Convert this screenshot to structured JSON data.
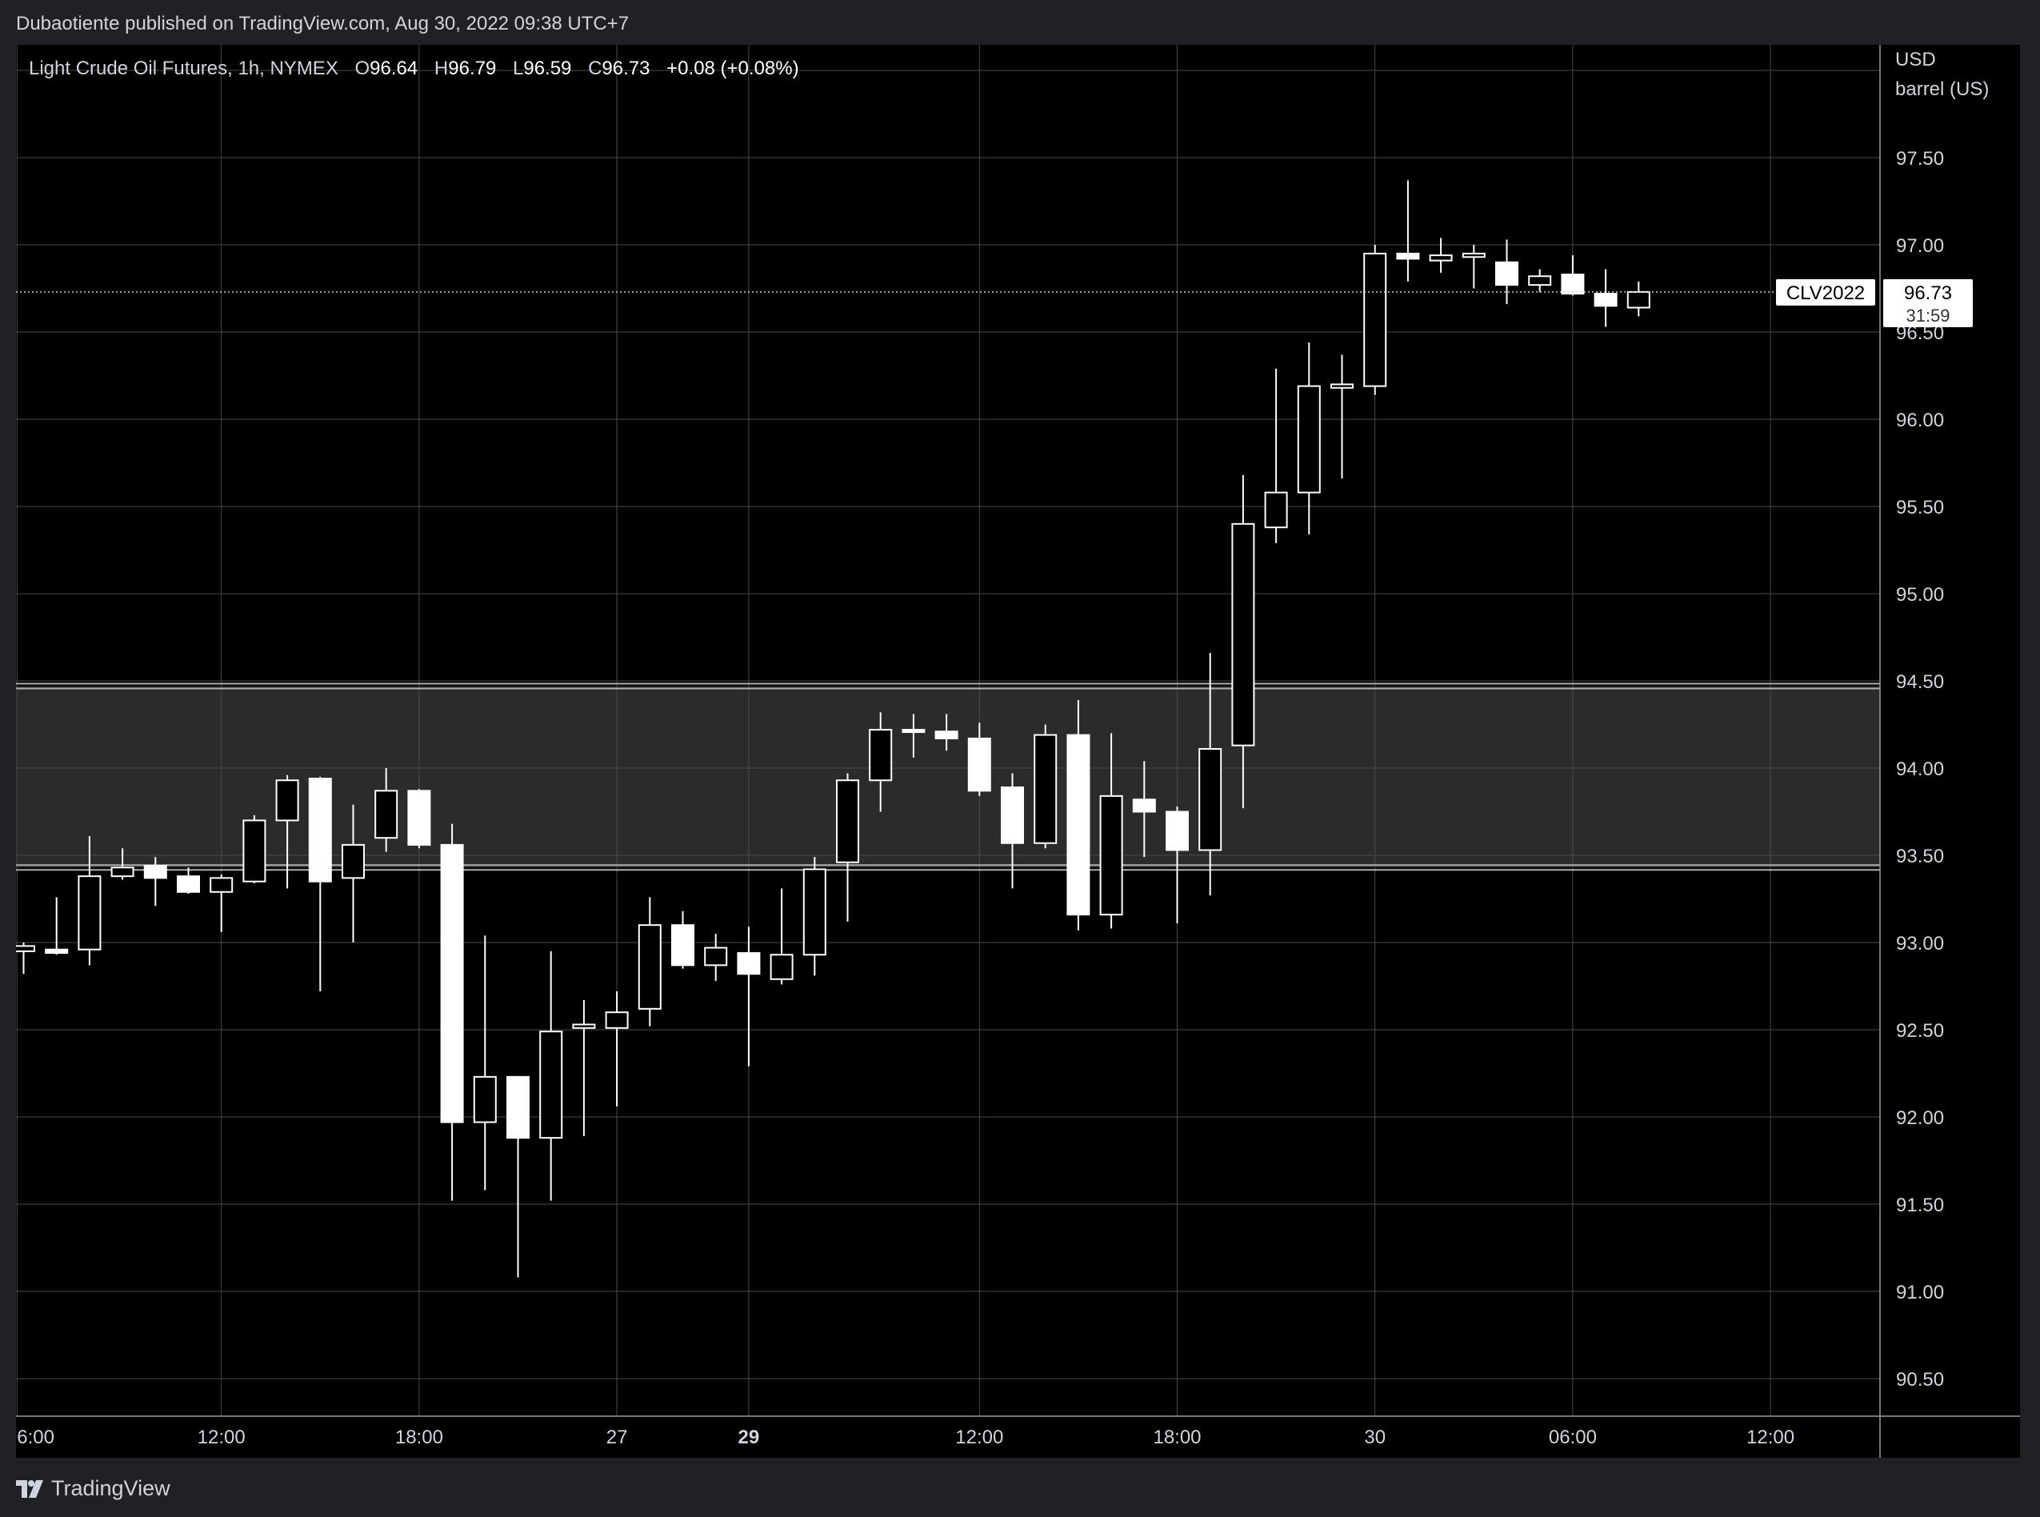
{
  "header": {
    "published": "Dubaotiente published on TradingView.com, Aug 30, 2022 09:38 UTC+7"
  },
  "legend": {
    "symbol": "Light Crude Oil Futures, 1h, NYMEX",
    "o_label": "O",
    "o": "96.64",
    "h_label": "H",
    "h": "96.79",
    "l_label": "L",
    "l": "96.59",
    "c_label": "C",
    "c": "96.73",
    "change": "+0.08 (+0.08%)"
  },
  "price_scale": {
    "currency": "USD",
    "unit": "barrel (US)",
    "ticks": [
      "97.50",
      "97.00",
      "96.50",
      "96.00",
      "95.50",
      "95.00",
      "94.50",
      "94.00",
      "93.50",
      "93.00",
      "92.50",
      "92.00",
      "91.50",
      "91.00",
      "90.50"
    ],
    "last_price": "96.73",
    "countdown": "31:59",
    "ticker_tag": "CLV2022"
  },
  "time_axis": {
    "labels": [
      {
        "text": "6:00",
        "idx": -0.2,
        "bold": false
      },
      {
        "text": "12:00",
        "idx": 6,
        "bold": false
      },
      {
        "text": "18:00",
        "idx": 12,
        "bold": false
      },
      {
        "text": "27",
        "idx": 18,
        "bold": false
      },
      {
        "text": "29",
        "idx": 22,
        "bold": true
      },
      {
        "text": "12:00",
        "idx": 29,
        "bold": false
      },
      {
        "text": "18:00",
        "idx": 35,
        "bold": false
      },
      {
        "text": "30",
        "idx": 41,
        "bold": false
      },
      {
        "text": "06:00",
        "idx": 47,
        "bold": false
      },
      {
        "text": "12:00",
        "idx": 53,
        "bold": false
      }
    ]
  },
  "chart_data": {
    "type": "candlestick",
    "title": "Light Crude Oil Futures, 1h, NYMEX",
    "ylim": [
      90.3,
      98.0
    ],
    "y_unit": "USD / barrel (US)",
    "grid": true,
    "zone": {
      "from": 93.43,
      "to": 94.47
    },
    "last_price": 96.73,
    "candles": [
      {
        "o": 92.95,
        "h": 93.0,
        "l": 92.82,
        "c": 92.98
      },
      {
        "o": 92.96,
        "h": 93.26,
        "l": 92.93,
        "c": 92.94
      },
      {
        "o": 92.96,
        "h": 93.61,
        "l": 92.87,
        "c": 93.38
      },
      {
        "o": 93.38,
        "h": 93.54,
        "l": 93.36,
        "c": 93.43
      },
      {
        "o": 93.44,
        "h": 93.49,
        "l": 93.21,
        "c": 93.37
      },
      {
        "o": 93.38,
        "h": 93.43,
        "l": 93.28,
        "c": 93.29
      },
      {
        "o": 93.29,
        "h": 93.39,
        "l": 93.06,
        "c": 93.37
      },
      {
        "o": 93.35,
        "h": 93.73,
        "l": 93.34,
        "c": 93.7
      },
      {
        "o": 93.7,
        "h": 93.96,
        "l": 93.31,
        "c": 93.93
      },
      {
        "o": 93.94,
        "h": 93.95,
        "l": 92.72,
        "c": 93.35
      },
      {
        "o": 93.37,
        "h": 93.79,
        "l": 93.0,
        "c": 93.56
      },
      {
        "o": 93.6,
        "h": 94.0,
        "l": 93.52,
        "c": 93.87
      },
      {
        "o": 93.87,
        "h": 93.88,
        "l": 93.54,
        "c": 93.56
      },
      {
        "o": 93.56,
        "h": 93.68,
        "l": 91.52,
        "c": 91.97
      },
      {
        "o": 91.97,
        "h": 93.04,
        "l": 91.58,
        "c": 92.23
      },
      {
        "o": 92.23,
        "h": 92.23,
        "l": 91.08,
        "c": 91.88
      },
      {
        "o": 91.88,
        "h": 92.95,
        "l": 91.52,
        "c": 92.49
      },
      {
        "o": 92.51,
        "h": 92.67,
        "l": 91.89,
        "c": 92.53
      },
      {
        "o": 92.51,
        "h": 92.72,
        "l": 92.06,
        "c": 92.6
      },
      {
        "o": 92.62,
        "h": 93.26,
        "l": 92.52,
        "c": 93.1
      },
      {
        "o": 93.1,
        "h": 93.18,
        "l": 92.85,
        "c": 92.87
      },
      {
        "o": 92.87,
        "h": 93.05,
        "l": 92.78,
        "c": 92.97
      },
      {
        "o": 92.94,
        "h": 93.09,
        "l": 92.29,
        "c": 92.82
      },
      {
        "o": 92.79,
        "h": 93.31,
        "l": 92.76,
        "c": 92.93
      },
      {
        "o": 92.93,
        "h": 93.49,
        "l": 92.81,
        "c": 93.42
      },
      {
        "o": 93.46,
        "h": 93.97,
        "l": 93.12,
        "c": 93.93
      },
      {
        "o": 93.93,
        "h": 94.32,
        "l": 93.75,
        "c": 94.22
      },
      {
        "o": 94.22,
        "h": 94.31,
        "l": 94.06,
        "c": 94.21
      },
      {
        "o": 94.21,
        "h": 94.31,
        "l": 94.1,
        "c": 94.17
      },
      {
        "o": 94.17,
        "h": 94.26,
        "l": 93.84,
        "c": 93.87
      },
      {
        "o": 93.89,
        "h": 93.97,
        "l": 93.31,
        "c": 93.57
      },
      {
        "o": 93.57,
        "h": 94.25,
        "l": 93.54,
        "c": 94.19
      },
      {
        "o": 94.19,
        "h": 94.39,
        "l": 93.07,
        "c": 93.16
      },
      {
        "o": 93.16,
        "h": 94.2,
        "l": 93.08,
        "c": 93.84
      },
      {
        "o": 93.82,
        "h": 94.04,
        "l": 93.49,
        "c": 93.75
      },
      {
        "o": 93.75,
        "h": 93.78,
        "l": 93.11,
        "c": 93.53
      },
      {
        "o": 93.53,
        "h": 94.66,
        "l": 93.27,
        "c": 94.11
      },
      {
        "o": 94.13,
        "h": 95.68,
        "l": 93.77,
        "c": 95.4
      },
      {
        "o": 95.38,
        "h": 96.29,
        "l": 95.29,
        "c": 95.58
      },
      {
        "o": 95.58,
        "h": 96.44,
        "l": 95.34,
        "c": 96.19
      },
      {
        "o": 96.18,
        "h": 96.37,
        "l": 95.66,
        "c": 96.2
      },
      {
        "o": 96.19,
        "h": 97.0,
        "l": 96.14,
        "c": 96.95
      },
      {
        "o": 96.95,
        "h": 97.37,
        "l": 96.79,
        "c": 96.92
      },
      {
        "o": 96.91,
        "h": 97.04,
        "l": 96.84,
        "c": 96.94
      },
      {
        "o": 96.93,
        "h": 97.0,
        "l": 96.75,
        "c": 96.95
      },
      {
        "o": 96.9,
        "h": 97.03,
        "l": 96.66,
        "c": 96.77
      },
      {
        "o": 96.77,
        "h": 96.86,
        "l": 96.73,
        "c": 96.82
      },
      {
        "o": 96.83,
        "h": 96.94,
        "l": 96.71,
        "c": 96.72
      },
      {
        "o": 96.72,
        "h": 96.86,
        "l": 96.53,
        "c": 96.65
      },
      {
        "o": 96.64,
        "h": 96.79,
        "l": 96.59,
        "c": 96.73
      }
    ]
  },
  "brand": {
    "name": "TradingView"
  },
  "colors": {
    "background": "#000000",
    "frame": "#1f2126",
    "grid": "#4a4a4a",
    "candle": "#ffffff",
    "zone_fill": "#2b2b2b",
    "zone_line": "#b0b0b0",
    "text": "#d1d4dc"
  }
}
